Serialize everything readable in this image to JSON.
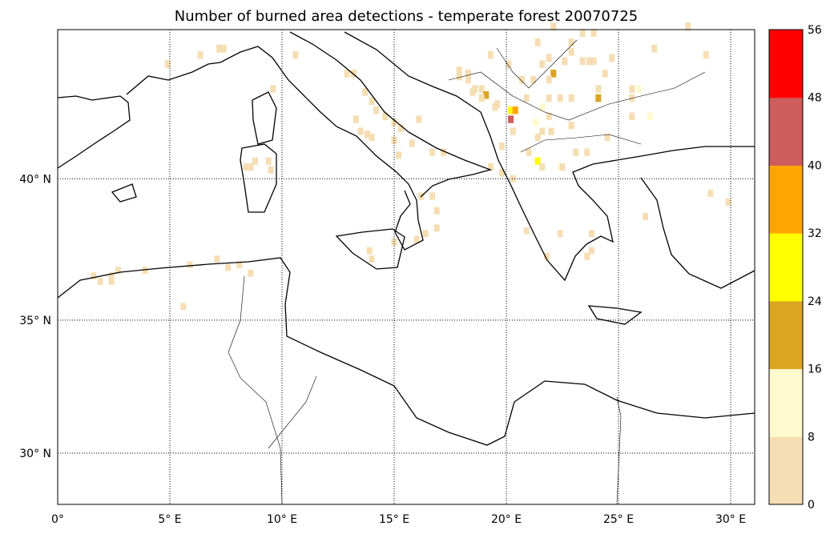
{
  "title": "Number of burned area detections - temperate forest 20070725",
  "chart_data": {
    "type": "heatmap",
    "title": "Number of burned area detections - temperate forest 20070725",
    "projection": "mercator",
    "lon_range": [
      0,
      31.07
    ],
    "lat_range": [
      28,
      45
    ],
    "grid": true,
    "cell_size_deg": 0.25,
    "lon_ticks": [
      {
        "v": 0,
        "label": "0°"
      },
      {
        "v": 5,
        "label": "5° E"
      },
      {
        "v": 10,
        "label": "10° E"
      },
      {
        "v": 15,
        "label": "15° E"
      },
      {
        "v": 20,
        "label": "20° E"
      },
      {
        "v": 25,
        "label": "25° E"
      },
      {
        "v": 30,
        "label": "30° E"
      }
    ],
    "lat_ticks": [
      {
        "v": 30,
        "label": "30° N"
      },
      {
        "v": 35,
        "label": "35° N"
      },
      {
        "v": 40,
        "label": "40° N"
      }
    ],
    "colorbar": {
      "bounds": [
        0,
        8,
        16,
        24,
        32,
        40,
        48,
        56
      ],
      "labels": [
        "0",
        "8",
        "16",
        "24",
        "32",
        "40",
        "48",
        "56"
      ],
      "colors": [
        "#f5deb3",
        "#fffacd",
        "#daa520",
        "#ffff00",
        "#ffa500",
        "#cd5c5c",
        "#ff0000"
      ]
    },
    "cells": [
      [
        6.36,
        44.1,
        4
      ],
      [
        7.2,
        44.3,
        4
      ],
      [
        7.4,
        44.3,
        4
      ],
      [
        4.9,
        43.8,
        4
      ],
      [
        10.6,
        44.1,
        4
      ],
      [
        9.6,
        43.0,
        4
      ],
      [
        12.9,
        43.5,
        4
      ],
      [
        13.2,
        43.5,
        4
      ],
      [
        13.7,
        42.9,
        4
      ],
      [
        14.0,
        42.6,
        4
      ],
      [
        14.2,
        42.3,
        4
      ],
      [
        13.5,
        41.6,
        4
      ],
      [
        13.8,
        41.5,
        4
      ],
      [
        14.0,
        41.4,
        4
      ],
      [
        13.3,
        42.0,
        4
      ],
      [
        14.6,
        42.1,
        4
      ],
      [
        15.0,
        41.9,
        4
      ],
      [
        15.3,
        41.7,
        4
      ],
      [
        15.0,
        41.3,
        4
      ],
      [
        15.8,
        41.2,
        4
      ],
      [
        16.1,
        42.0,
        4
      ],
      [
        16.7,
        40.9,
        4
      ],
      [
        17.2,
        40.9,
        4
      ],
      [
        15.2,
        40.8,
        4
      ],
      [
        8.4,
        40.4,
        4
      ],
      [
        8.8,
        40.6,
        4
      ],
      [
        9.4,
        40.6,
        4
      ],
      [
        9.5,
        40.3,
        4
      ],
      [
        8.6,
        40.4,
        4
      ],
      [
        16.7,
        39.4,
        4
      ],
      [
        16.9,
        38.9,
        4
      ],
      [
        16.4,
        38.1,
        4
      ],
      [
        16.0,
        37.9,
        4
      ],
      [
        16.9,
        38.3,
        4
      ],
      [
        16.2,
        39.4,
        4
      ],
      [
        13.9,
        37.5,
        4
      ],
      [
        14.0,
        37.2,
        4
      ],
      [
        15.0,
        37.8,
        4
      ],
      [
        17.9,
        43.4,
        4
      ],
      [
        18.3,
        43.3,
        4
      ],
      [
        18.5,
        42.9,
        4
      ],
      [
        18.9,
        43.0,
        4
      ],
      [
        19.1,
        42.8,
        20
      ],
      [
        19.6,
        42.5,
        4
      ],
      [
        20.2,
        42.3,
        28
      ],
      [
        20.4,
        42.3,
        36
      ],
      [
        20.2,
        42.0,
        44
      ],
      [
        22.1,
        43.5,
        20
      ],
      [
        24.1,
        42.7,
        20
      ],
      [
        21.4,
        40.6,
        28
      ],
      [
        22.1,
        45.0,
        4
      ],
      [
        23.4,
        44.8,
        4
      ],
      [
        23.9,
        44.8,
        4
      ],
      [
        21.4,
        44.5,
        4
      ],
      [
        22.9,
        44.5,
        4
      ],
      [
        22.9,
        44.2,
        4
      ],
      [
        21.6,
        43.8,
        4
      ],
      [
        21.9,
        44.0,
        4
      ],
      [
        22.6,
        43.9,
        4
      ],
      [
        23.4,
        43.9,
        4
      ],
      [
        23.7,
        43.9,
        4
      ],
      [
        23.9,
        43.9,
        4
      ],
      [
        24.7,
        44.0,
        4
      ],
      [
        26.6,
        44.3,
        4
      ],
      [
        24.4,
        43.5,
        4
      ],
      [
        25.6,
        43.0,
        4
      ],
      [
        25.9,
        43.0,
        12
      ],
      [
        25.6,
        42.7,
        4
      ],
      [
        25.6,
        42.1,
        4
      ],
      [
        26.4,
        42.1,
        12
      ],
      [
        24.1,
        43.0,
        4
      ],
      [
        22.9,
        42.7,
        4
      ],
      [
        22.4,
        42.7,
        4
      ],
      [
        21.9,
        43.3,
        4
      ],
      [
        21.9,
        42.7,
        4
      ],
      [
        21.2,
        43.3,
        4
      ],
      [
        20.7,
        43.3,
        4
      ],
      [
        20.9,
        42.7,
        4
      ],
      [
        20.1,
        43.8,
        4
      ],
      [
        19.3,
        44.1,
        4
      ],
      [
        17.9,
        43.6,
        4
      ],
      [
        18.3,
        43.5,
        4
      ],
      [
        18.6,
        43.0,
        4
      ],
      [
        18.9,
        42.7,
        4
      ],
      [
        19.5,
        42.4,
        4
      ],
      [
        21.6,
        42.4,
        12
      ],
      [
        21.9,
        42.1,
        4
      ],
      [
        21.3,
        41.9,
        12
      ],
      [
        21.6,
        41.6,
        4
      ],
      [
        22.0,
        41.6,
        4
      ],
      [
        21.4,
        41.4,
        4
      ],
      [
        22.9,
        41.8,
        4
      ],
      [
        24.5,
        41.4,
        4
      ],
      [
        23.1,
        40.9,
        4
      ],
      [
        23.6,
        40.9,
        4
      ],
      [
        21.6,
        40.4,
        4
      ],
      [
        22.4,
        40.4,
        12
      ],
      [
        20.3,
        41.6,
        4
      ],
      [
        19.8,
        41.1,
        4
      ],
      [
        21.0,
        40.9,
        4
      ],
      [
        19.3,
        40.4,
        4
      ],
      [
        28.1,
        45.0,
        4
      ],
      [
        28.9,
        44.1,
        4
      ],
      [
        29.1,
        39.5,
        4
      ],
      [
        29.9,
        39.2,
        4
      ],
      [
        26.2,
        38.7,
        4
      ],
      [
        23.8,
        37.5,
        4
      ],
      [
        23.6,
        37.3,
        4
      ],
      [
        23.8,
        38.1,
        4
      ],
      [
        22.4,
        38.1,
        4
      ],
      [
        21.8,
        37.3,
        4
      ],
      [
        20.9,
        38.2,
        4
      ],
      [
        22.5,
        40.4,
        4
      ],
      [
        19.8,
        40.2,
        4
      ],
      [
        20.3,
        40.0,
        4
      ],
      [
        1.6,
        36.6,
        4
      ],
      [
        1.9,
        36.4,
        4
      ],
      [
        2.4,
        36.6,
        4
      ],
      [
        2.4,
        36.4,
        4
      ],
      [
        2.7,
        36.8,
        4
      ],
      [
        3.9,
        36.8,
        4
      ],
      [
        5.9,
        37.0,
        4
      ],
      [
        7.1,
        37.2,
        4
      ],
      [
        7.6,
        36.9,
        4
      ],
      [
        8.1,
        37.0,
        4
      ],
      [
        8.6,
        36.7,
        4
      ],
      [
        5.6,
        35.5,
        4
      ]
    ]
  }
}
